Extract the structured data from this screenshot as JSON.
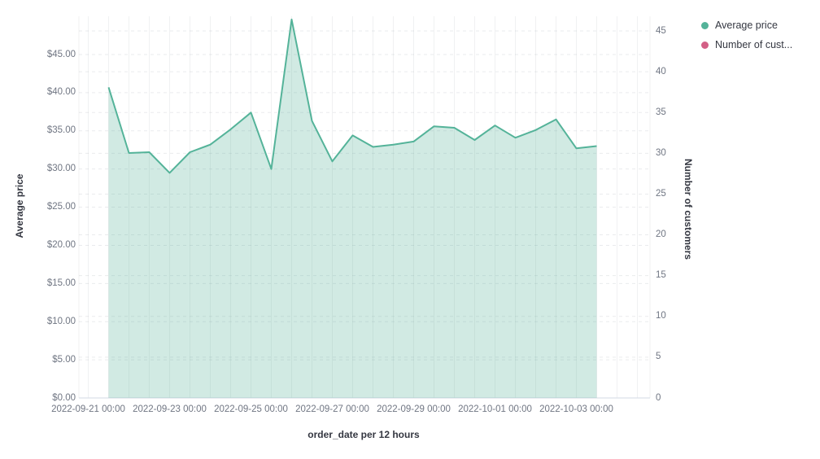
{
  "legend": {
    "items": [
      {
        "label": "Average price",
        "color": "#54B399"
      },
      {
        "label": "Number of cust...",
        "color": "#D36086"
      }
    ]
  },
  "axes": {
    "left": {
      "title": "Average price",
      "ticks": [
        "$0.00",
        "$5.00",
        "$10.00",
        "$15.00",
        "$20.00",
        "$25.00",
        "$30.00",
        "$35.00",
        "$40.00",
        "$45.00"
      ],
      "tick_values": [
        0,
        5,
        10,
        15,
        20,
        25,
        30,
        35,
        40,
        45
      ]
    },
    "right": {
      "title": "Number of customers",
      "ticks": [
        "0",
        "5",
        "10",
        "15",
        "20",
        "25",
        "30",
        "35",
        "40",
        "45"
      ],
      "tick_values": [
        0,
        5,
        10,
        15,
        20,
        25,
        30,
        35,
        40,
        45
      ]
    },
    "bottom": {
      "title": "order_date per 12 hours",
      "ticks": [
        "2022-09-21 00:00",
        "2022-09-23 00:00",
        "2022-09-25 00:00",
        "2022-09-27 00:00",
        "2022-09-29 00:00",
        "2022-10-01 00:00",
        "2022-10-03 00:00"
      ]
    }
  },
  "chart_data": {
    "type": "area",
    "title": "",
    "xlabel": "order_date per 12 hours",
    "ylabel_left": "Average price",
    "ylabel_right": "Number of customers",
    "x_bucket_interval": "12 hours",
    "x": [
      "2022-09-21 12:00",
      "2022-09-22 00:00",
      "2022-09-22 12:00",
      "2022-09-23 00:00",
      "2022-09-23 12:00",
      "2022-09-24 00:00",
      "2022-09-24 12:00",
      "2022-09-25 00:00",
      "2022-09-25 12:00",
      "2022-09-26 00:00",
      "2022-09-26 12:00",
      "2022-09-27 00:00",
      "2022-09-27 12:00",
      "2022-09-28 00:00",
      "2022-09-28 12:00",
      "2022-09-29 00:00",
      "2022-09-29 12:00",
      "2022-09-30 00:00",
      "2022-09-30 12:00",
      "2022-10-01 00:00",
      "2022-10-01 12:00",
      "2022-10-02 00:00",
      "2022-10-02 12:00",
      "2022-10-03 00:00",
      "2022-10-03 12:00"
    ],
    "series": [
      {
        "name": "Average price",
        "axis": "left",
        "style": "area",
        "color": "#54B399",
        "fill_opacity": 0.27,
        "values": [
          40.7,
          32.1,
          32.2,
          29.5,
          32.2,
          33.2,
          35.2,
          37.4,
          30.0,
          49.6,
          36.3,
          31.0,
          34.4,
          32.9,
          33.2,
          33.6,
          35.6,
          35.4,
          33.8,
          35.7,
          34.1,
          35.1,
          36.5,
          32.7,
          33.0
        ]
      },
      {
        "name": "Number of customers",
        "axis": "right",
        "color": "#D36086",
        "note": "legend entry is visible but no distinct line is visible in the plot"
      }
    ],
    "ylim_left": [
      0,
      50
    ],
    "ylim_right": [
      0,
      47
    ],
    "grid": true,
    "legend_position": "top-right"
  },
  "colors": {
    "series_green": "#54B399",
    "series_pink": "#D36086",
    "tick_text": "#707683",
    "title_text": "#343741",
    "grid_vertical": "rgba(105,115,125,0.10)",
    "grid_dashed": "rgba(105,115,125,0.14)",
    "axis_baseline": "#d3dae6"
  }
}
